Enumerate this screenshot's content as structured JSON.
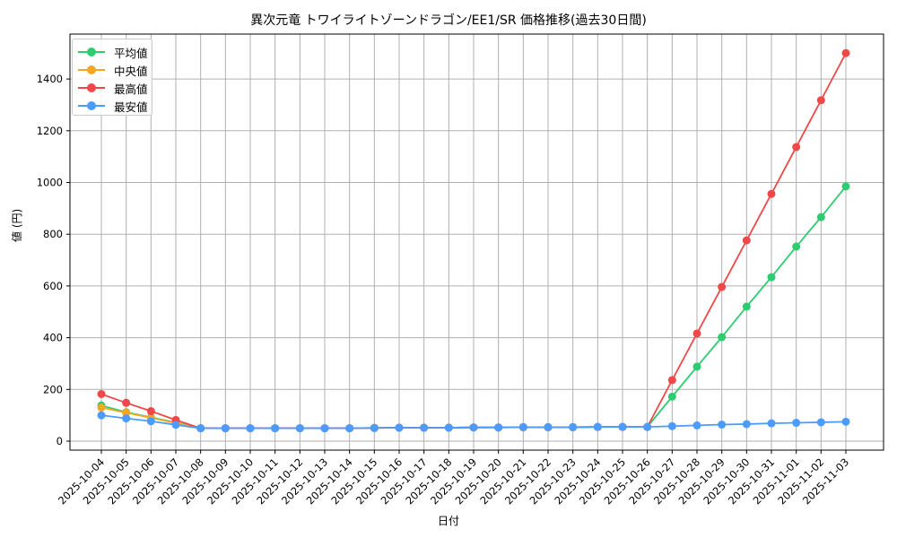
{
  "chart_data": {
    "type": "line",
    "title": "異次元竜 トワイライトゾーンドラゴン/EE1/SR 価格推移(過去30日間)",
    "xlabel": "日付",
    "ylabel": "値 (円)",
    "ylim": [
      -45,
      1560
    ],
    "yticks": [
      0,
      200,
      400,
      600,
      800,
      1000,
      1200,
      1400
    ],
    "grid": true,
    "legend_position": "upper left",
    "categories": [
      "2025-10-04",
      "2025-10-05",
      "2025-10-06",
      "2025-10-07",
      "2025-10-08",
      "2025-10-09",
      "2025-10-10",
      "2025-10-11",
      "2025-10-12",
      "2025-10-13",
      "2025-10-14",
      "2025-10-15",
      "2025-10-16",
      "2025-10-17",
      "2025-10-18",
      "2025-10-19",
      "2025-10-20",
      "2025-10-21",
      "2025-10-22",
      "2025-10-23",
      "2025-10-24",
      "2025-10-25",
      "2025-10-26",
      "2025-10-27",
      "2025-10-28",
      "2025-10-29",
      "2025-10-30",
      "2025-10-31",
      "2025-11-01",
      "2025-11-02",
      "2025-11-03"
    ],
    "series": [
      {
        "name": "平均値",
        "color": "#2ecc71",
        "values": [
          138,
          112,
          92,
          72,
          50,
          50,
          50,
          50,
          50,
          50,
          50,
          51,
          52,
          52,
          52,
          53,
          53,
          54,
          54,
          54,
          55,
          55,
          55,
          172,
          288,
          402,
          520,
          634,
          752,
          866,
          985
        ]
      },
      {
        "name": "中央値",
        "color": "#f5a623",
        "values": [
          130,
          110,
          90,
          70,
          50,
          50,
          50,
          50,
          50,
          50,
          50,
          51,
          52,
          52,
          52,
          53,
          53,
          54,
          54,
          54,
          55,
          55,
          55,
          null,
          null,
          null,
          null,
          null,
          null,
          null,
          null
        ]
      },
      {
        "name": "最高値",
        "color": "#f04848",
        "values": [
          182,
          148,
          116,
          82,
          50,
          50,
          50,
          50,
          50,
          50,
          50,
          51,
          52,
          52,
          52,
          53,
          53,
          54,
          54,
          54,
          55,
          55,
          55,
          236,
          416,
          596,
          776,
          956,
          1137,
          1318,
          1500
        ]
      },
      {
        "name": "最安値",
        "color": "#4c9bff",
        "values": [
          100,
          88,
          77,
          63,
          50,
          50,
          50,
          50,
          50,
          50,
          50,
          51,
          52,
          52,
          52,
          53,
          53,
          54,
          54,
          54,
          55,
          55,
          55,
          58,
          61,
          64,
          66,
          69,
          71,
          73,
          75
        ]
      }
    ]
  }
}
